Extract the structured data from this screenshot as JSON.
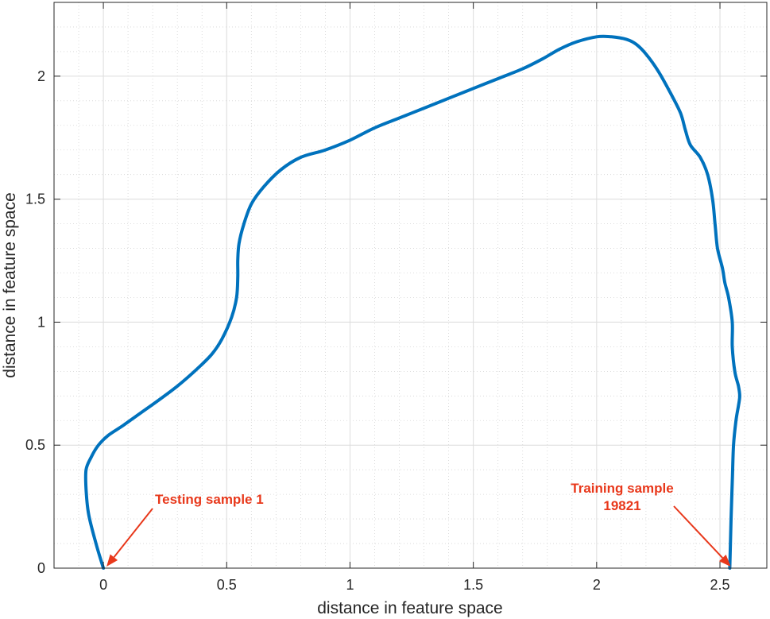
{
  "chart_data": {
    "type": "line",
    "title": "",
    "xlabel": "distance in feature space",
    "ylabel": "distance in feature space",
    "xlim": [
      -0.2,
      2.69
    ],
    "ylim": [
      0,
      2.3
    ],
    "xticks": [
      0,
      0.5,
      1,
      1.5,
      2,
      2.5
    ],
    "xtick_labels": [
      "0",
      "0.5",
      "1",
      "1.5",
      "2",
      "2.5"
    ],
    "yticks": [
      0,
      0.5,
      1,
      1.5,
      2
    ],
    "ytick_labels": [
      "0",
      "0.5",
      "1",
      "1.5",
      "2"
    ],
    "grid": true,
    "minor_grid": true,
    "line_color": "#0072BD",
    "annotation_color": "#E8381B",
    "series": [
      {
        "x": [
          0.0,
          -0.03,
          -0.06,
          -0.07,
          -0.07,
          -0.05,
          -0.02,
          0.02,
          0.08,
          0.15,
          0.22,
          0.3,
          0.38,
          0.44,
          0.48,
          0.52,
          0.54,
          0.545,
          0.545,
          0.55,
          0.57,
          0.6,
          0.65,
          0.72,
          0.8,
          0.9,
          1.0,
          1.1,
          1.2,
          1.3,
          1.4,
          1.5,
          1.6,
          1.7,
          1.78,
          1.85,
          1.92,
          2.0,
          2.06,
          2.12,
          2.16,
          2.2,
          2.25,
          2.3,
          2.34,
          2.36,
          2.38,
          2.42,
          2.45,
          2.47,
          2.48,
          2.49,
          2.51,
          2.52,
          2.535,
          2.55,
          2.55,
          2.56,
          2.575,
          2.58,
          2.575,
          2.565,
          2.555,
          2.55,
          2.545,
          2.54
        ],
        "y": [
          0.0,
          0.1,
          0.22,
          0.32,
          0.4,
          0.45,
          0.5,
          0.54,
          0.58,
          0.63,
          0.68,
          0.74,
          0.81,
          0.87,
          0.93,
          1.02,
          1.1,
          1.18,
          1.25,
          1.32,
          1.4,
          1.48,
          1.55,
          1.62,
          1.67,
          1.7,
          1.74,
          1.79,
          1.83,
          1.87,
          1.91,
          1.95,
          1.99,
          2.03,
          2.07,
          2.11,
          2.14,
          2.16,
          2.16,
          2.15,
          2.13,
          2.09,
          2.02,
          1.93,
          1.85,
          1.78,
          1.72,
          1.67,
          1.6,
          1.5,
          1.4,
          1.3,
          1.22,
          1.16,
          1.1,
          1.0,
          0.9,
          0.8,
          0.74,
          0.7,
          0.66,
          0.6,
          0.5,
          0.35,
          0.2,
          0.0
        ]
      }
    ],
    "annotations": [
      {
        "text": "Testing sample 1",
        "x": 0.0,
        "y": 0.0
      },
      {
        "text": "Training sample 19821",
        "x": 2.55,
        "y": 0.0
      }
    ]
  }
}
